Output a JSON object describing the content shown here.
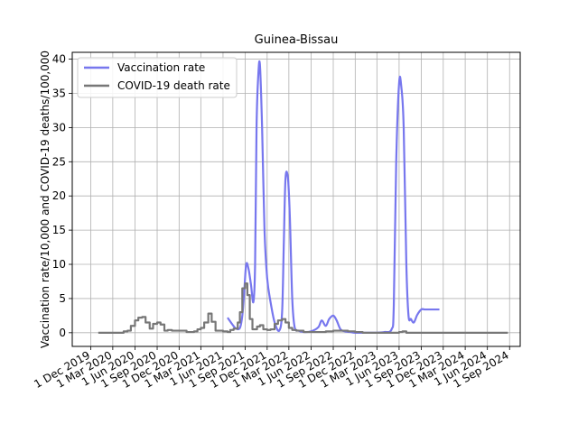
{
  "chart_data": {
    "type": "line",
    "title": "Guinea-Bissau",
    "xlabel": "",
    "ylabel": "Vaccination rate/10,000 and COVID-19 deaths/100,000",
    "xlim": [
      "2019-09-15",
      "2024-10-15"
    ],
    "ylim": [
      -2,
      41
    ],
    "grid": true,
    "legend_position": "top-left",
    "x_ticks": [
      "1 Dec 2019",
      "1 Mar 2020",
      "1 Jun 2020",
      "1 Sep 2020",
      "1 Dec 2020",
      "1 Mar 2021",
      "1 Jun 2021",
      "1 Sep 2021",
      "1 Dec 2021",
      "1 Mar 2022",
      "1 Jun 2022",
      "1 Sep 2022",
      "1 Dec 2022",
      "1 Mar 2023",
      "1 Jun 2023",
      "1 Sep 2023",
      "1 Dec 2023",
      "1 Mar 2024",
      "1 Jun 2024",
      "1 Sep 2024"
    ],
    "x_tick_dates": [
      "2019-12-01",
      "2020-03-01",
      "2020-06-01",
      "2020-09-01",
      "2020-12-01",
      "2021-03-01",
      "2021-06-01",
      "2021-09-01",
      "2021-12-01",
      "2022-03-01",
      "2022-06-01",
      "2022-09-01",
      "2022-12-01",
      "2023-03-01",
      "2023-06-01",
      "2023-09-01",
      "2023-12-01",
      "2024-03-01",
      "2024-06-01",
      "2024-09-01"
    ],
    "y_ticks": [
      "0",
      "5",
      "10",
      "15",
      "20",
      "25",
      "30",
      "35",
      "40"
    ],
    "y_tick_values": [
      0,
      5,
      10,
      15,
      20,
      25,
      30,
      35,
      40
    ],
    "series": [
      {
        "name": "Vaccination rate",
        "color": "#7777ee",
        "x": [
          "2021-06-20",
          "2021-07-10",
          "2021-07-25",
          "2021-08-10",
          "2021-08-20",
          "2021-08-28",
          "2021-09-05",
          "2021-09-15",
          "2021-09-25",
          "2021-10-05",
          "2021-10-12",
          "2021-10-18",
          "2021-10-25",
          "2021-11-01",
          "2021-11-10",
          "2021-11-20",
          "2021-12-01",
          "2021-12-15",
          "2022-01-01",
          "2022-01-20",
          "2022-02-01",
          "2022-02-08",
          "2022-02-15",
          "2022-02-25",
          "2022-03-05",
          "2022-03-15",
          "2022-03-25",
          "2022-04-10",
          "2022-05-01",
          "2022-06-01",
          "2022-07-01",
          "2022-07-15",
          "2022-08-01",
          "2022-08-15",
          "2022-09-01",
          "2022-09-15",
          "2022-10-01",
          "2022-10-20",
          "2022-11-10",
          "2022-12-01",
          "2023-01-01",
          "2023-02-01",
          "2023-03-01",
          "2023-04-01",
          "2023-05-01",
          "2023-05-10",
          "2023-05-20",
          "2023-06-01",
          "2023-06-10",
          "2023-06-20",
          "2023-07-01",
          "2023-07-10",
          "2023-07-20",
          "2023-08-01",
          "2023-08-15",
          "2023-09-01",
          "2023-09-15",
          "2023-10-01",
          "2023-10-15",
          "2023-11-01",
          "2023-11-15"
        ],
        "y": [
          2.2,
          1.2,
          0.6,
          0.7,
          2.5,
          6.0,
          10.0,
          9.3,
          7.0,
          4.5,
          10.0,
          30.0,
          37.5,
          39.2,
          30.0,
          15.0,
          8.0,
          4.5,
          1.5,
          0.3,
          3.0,
          13.0,
          22.5,
          22.7,
          17.0,
          5.0,
          0.8,
          0.3,
          0.1,
          0.2,
          0.8,
          1.8,
          1.0,
          2.0,
          2.5,
          1.8,
          0.5,
          0.2,
          0.1,
          0.0,
          0.0,
          0.0,
          0.0,
          0.1,
          0.5,
          4.0,
          25.0,
          36.5,
          36.0,
          30.0,
          10.0,
          2.5,
          2.0,
          1.5,
          2.6,
          3.4,
          3.4,
          3.4,
          3.4,
          3.4,
          3.4
        ]
      },
      {
        "name": "COVID-19 death rate",
        "color": "#777777",
        "x": [
          "2020-01-01",
          "2020-03-01",
          "2020-04-01",
          "2020-04-15",
          "2020-05-01",
          "2020-05-15",
          "2020-06-01",
          "2020-06-15",
          "2020-07-01",
          "2020-07-15",
          "2020-08-01",
          "2020-08-15",
          "2020-09-01",
          "2020-09-15",
          "2020-10-01",
          "2020-10-15",
          "2020-11-01",
          "2020-12-01",
          "2021-01-01",
          "2021-02-01",
          "2021-02-15",
          "2021-03-01",
          "2021-03-15",
          "2021-04-01",
          "2021-04-15",
          "2021-05-01",
          "2021-05-15",
          "2021-06-01",
          "2021-06-20",
          "2021-07-01",
          "2021-07-15",
          "2021-08-01",
          "2021-08-10",
          "2021-08-20",
          "2021-09-01",
          "2021-09-10",
          "2021-09-20",
          "2021-10-01",
          "2021-10-20",
          "2021-11-01",
          "2021-11-15",
          "2021-12-01",
          "2021-12-15",
          "2022-01-01",
          "2022-01-15",
          "2022-02-01",
          "2022-02-15",
          "2022-03-01",
          "2022-03-15",
          "2022-04-01",
          "2022-05-01",
          "2022-06-01",
          "2022-07-01",
          "2022-08-01",
          "2022-09-01",
          "2022-10-01",
          "2022-11-01",
          "2022-12-01",
          "2023-01-01",
          "2023-03-01",
          "2023-05-01",
          "2023-06-01",
          "2023-06-15",
          "2023-07-01",
          "2023-09-01",
          "2023-12-01",
          "2024-03-01",
          "2024-06-01",
          "2024-08-25"
        ],
        "y": [
          0,
          0,
          0,
          0.2,
          0.3,
          1.0,
          1.8,
          2.2,
          2.3,
          1.5,
          0.6,
          1.3,
          1.5,
          1.2,
          0.3,
          0.4,
          0.3,
          0.3,
          0.1,
          0.2,
          0.5,
          0.7,
          1.5,
          2.8,
          1.6,
          0.3,
          0.3,
          0.2,
          0.1,
          0.4,
          0.6,
          1.5,
          3.0,
          6.5,
          7.2,
          5.5,
          2.0,
          0.5,
          0.9,
          1.1,
          0.5,
          0.4,
          0.5,
          1.3,
          1.8,
          2.0,
          1.5,
          0.7,
          0.4,
          0.3,
          0.1,
          0.1,
          0.1,
          0.2,
          0.3,
          0.3,
          0.2,
          0.1,
          0.0,
          0.0,
          0.0,
          0.1,
          0.2,
          0.0,
          0.0,
          0.0,
          0.0,
          0.0,
          0.0
        ]
      }
    ]
  }
}
